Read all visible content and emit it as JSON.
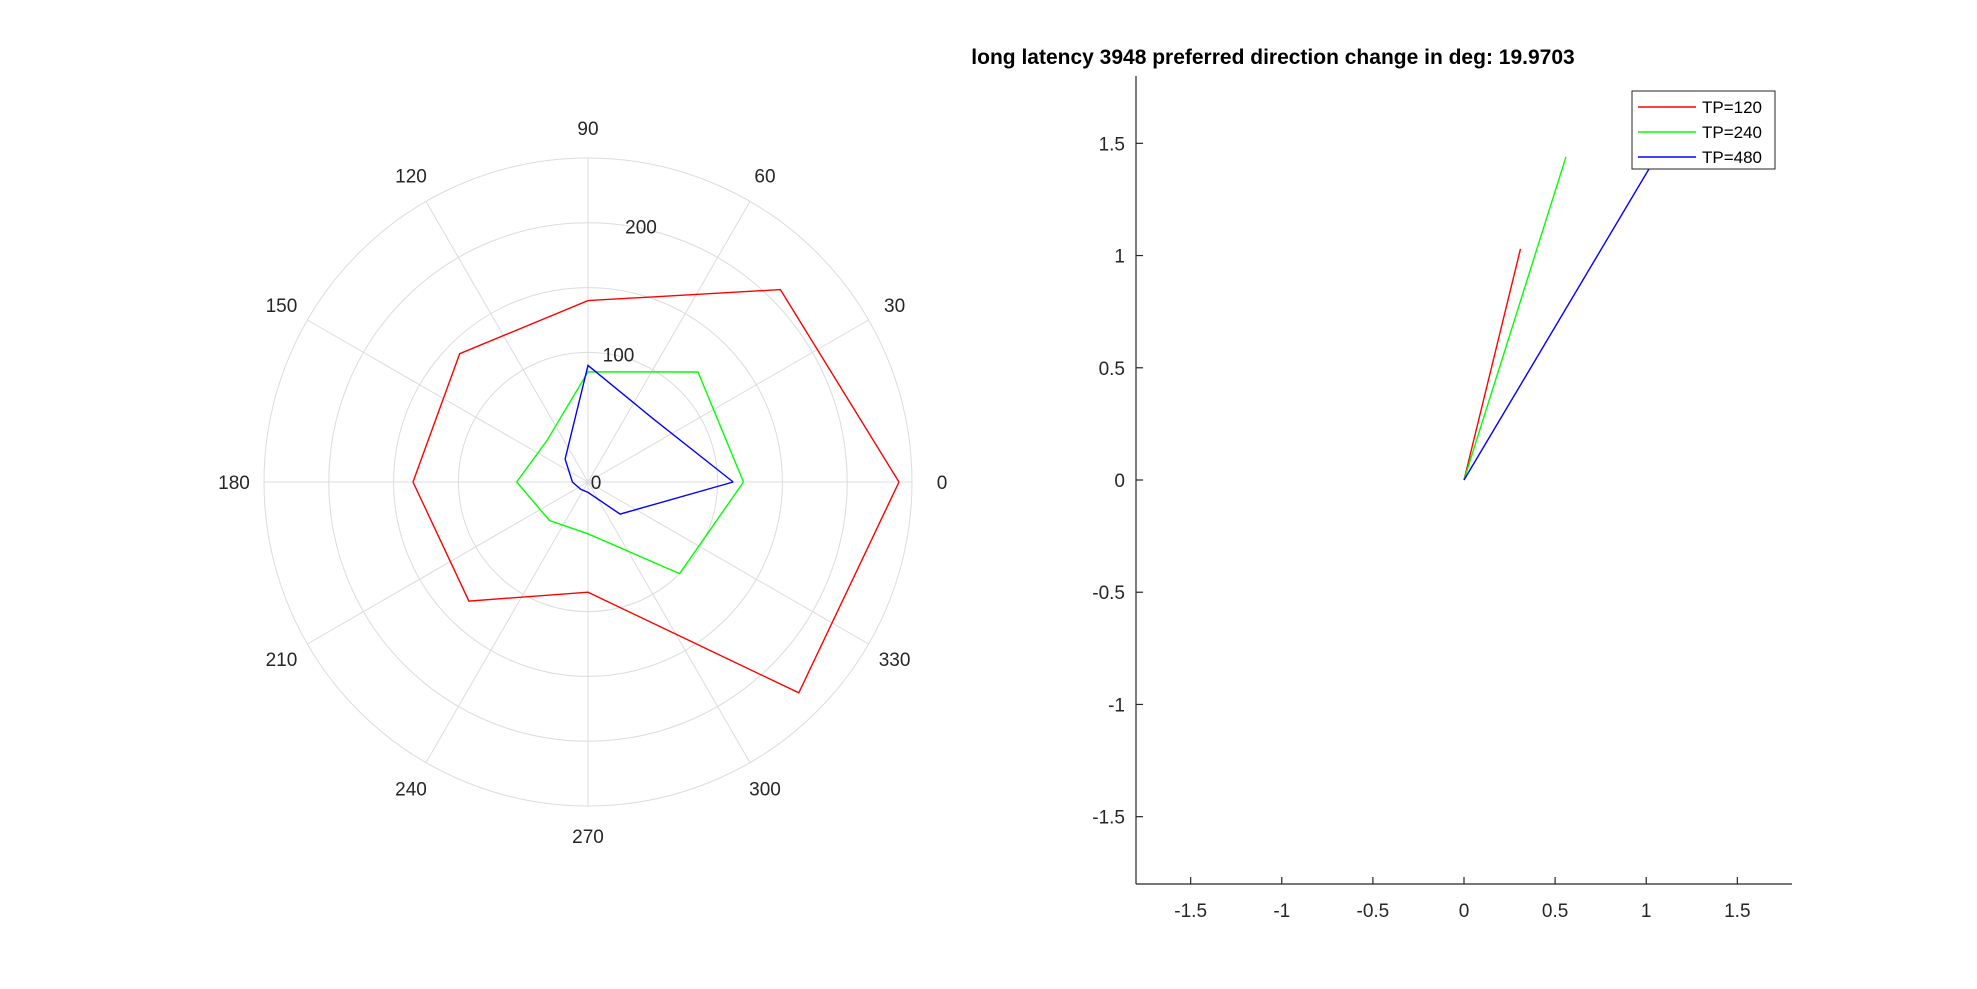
{
  "chart_data": [
    {
      "type": "polar",
      "angle_unit": "deg",
      "theta_ticks": [
        "0",
        "30",
        "60",
        "90",
        "120",
        "150",
        "180",
        "210",
        "240",
        "270",
        "300",
        "330"
      ],
      "r_ticks": [
        "0",
        "100",
        "200"
      ],
      "rlim": [
        0,
        250
      ],
      "grid": true,
      "series": [
        {
          "color": "#ff0000",
          "theta": [
            0,
            45,
            90,
            135,
            180,
            225,
            270,
            315
          ],
          "r": [
            240,
            210,
            140,
            140,
            135,
            130,
            85,
            230
          ]
        },
        {
          "color": "#00ff00",
          "theta": [
            0,
            45,
            90,
            135,
            180,
            225,
            270,
            315
          ],
          "r": [
            120,
            120,
            85,
            45,
            55,
            42,
            40,
            100
          ]
        },
        {
          "color": "#0000ff",
          "theta": [
            0,
            45,
            90,
            135,
            180,
            225,
            270,
            315
          ],
          "r": [
            112,
            70,
            90,
            25,
            12,
            8,
            8,
            35
          ]
        }
      ]
    },
    {
      "type": "line",
      "title": "long latency 3948 preferred direction change in deg: 19.9703",
      "xlim": [
        -1.8,
        1.8
      ],
      "ylim": [
        -1.8,
        1.8
      ],
      "x_ticks": [
        "-1.5",
        "-1",
        "-0.5",
        "0",
        "0.5",
        "1",
        "1.5"
      ],
      "y_ticks": [
        "1.5",
        "1",
        "0.5",
        "0",
        "-0.5",
        "-1",
        "-1.5"
      ],
      "grid": false,
      "legend_position": "top-right",
      "series": [
        {
          "name": "TP=120",
          "color": "#ff0000",
          "x": [
            0,
            0.31
          ],
          "y": [
            0,
            1.03
          ]
        },
        {
          "name": "TP=240",
          "color": "#00ff00",
          "x": [
            0,
            0.56
          ],
          "y": [
            0,
            1.44
          ]
        },
        {
          "name": "TP=480",
          "color": "#0000ff",
          "x": [
            0,
            1.04
          ],
          "y": [
            0,
            1.42
          ]
        }
      ]
    }
  ]
}
